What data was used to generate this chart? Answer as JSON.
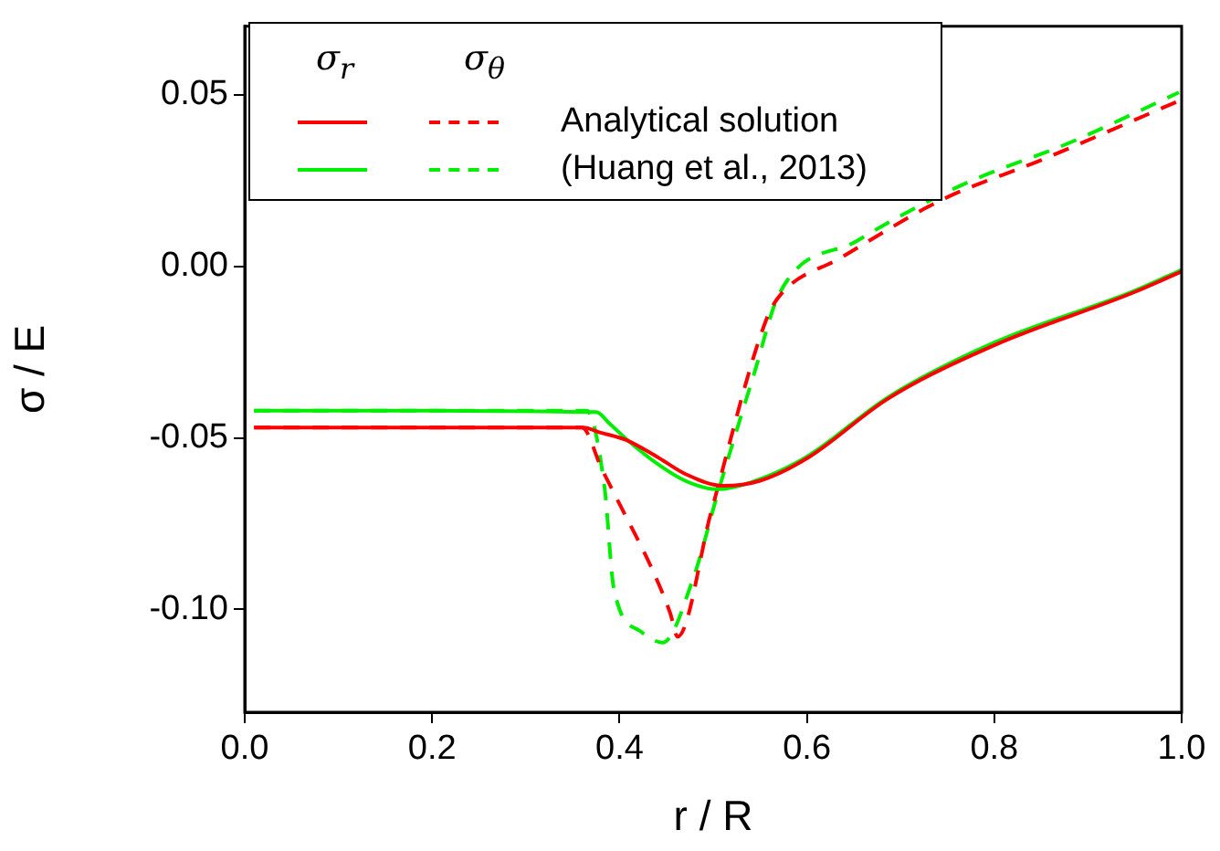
{
  "chart_data": {
    "type": "line",
    "xlabel": "r / R",
    "ylabel": "σ / E",
    "xlim": [
      0,
      1
    ],
    "ylim": [
      -0.13,
      0.07
    ],
    "xticks": [
      {
        "value": 0,
        "label": "0.0"
      },
      {
        "value": 0.2,
        "label": "0.2"
      },
      {
        "value": 0.4,
        "label": "0.4"
      },
      {
        "value": 0.6,
        "label": "0.6"
      },
      {
        "value": 0.8,
        "label": "0.8"
      },
      {
        "value": 1,
        "label": "1.0"
      }
    ],
    "yticks": [
      {
        "value": -0.1,
        "label": "-0.10"
      },
      {
        "value": -0.05,
        "label": "-0.05"
      },
      {
        "value": 0,
        "label": "0.00"
      },
      {
        "value": 0.05,
        "label": "0.05"
      }
    ],
    "grid": false,
    "legend": "top left",
    "legend_title": "σ$_{r}$          σ$_{θ}$",
    "marker": "none",
    "series": [
      {
        "name": "Analytical solution",
        "color": "#ff0000",
        "line_style": "solid",
        "x": [
          0.01,
          0.2,
          0.361,
          0.38,
          0.406,
          0.44,
          0.47,
          0.511,
          0.55,
          0.6,
          0.687,
          0.8,
          0.947,
          1.0
        ],
        "values": [
          -0.047,
          -0.047,
          -0.047,
          -0.0485,
          -0.0505,
          -0.0555,
          -0.0605,
          -0.064,
          -0.0625,
          -0.056,
          -0.0385,
          -0.023,
          -0.0078,
          -0.0015
        ]
      },
      {
        "name": "(Huang et al., 2013)",
        "color": "#00ee00",
        "line_style": "solid",
        "x": [
          0.01,
          0.2,
          0.375,
          0.39,
          0.41,
          0.44,
          0.47,
          0.504,
          0.54,
          0.6,
          0.687,
          0.8,
          0.947,
          1.0
        ],
        "values": [
          -0.0421,
          -0.0421,
          -0.0425,
          -0.046,
          -0.051,
          -0.0575,
          -0.0625,
          -0.065,
          -0.063,
          -0.0555,
          -0.0381,
          -0.0222,
          -0.0074,
          -0.001
        ]
      },
      {
        "color": "#ff0000",
        "line_style": "dashed",
        "x": [
          0.01,
          0.2,
          0.36,
          0.381,
          0.407,
          0.433,
          0.454,
          0.462,
          0.498,
          0.557,
          0.573,
          0.635,
          0.744,
          0.85,
          1.0
        ],
        "values": [
          -0.047,
          -0.047,
          -0.047,
          -0.059,
          -0.073,
          -0.0872,
          -0.101,
          -0.108,
          -0.0714,
          -0.0153,
          -0.0079,
          0.0023,
          0.0194,
          0.031,
          0.0486
        ]
      },
      {
        "color": "#00ee00",
        "line_style": "dashed",
        "x": [
          0.01,
          0.2,
          0.365,
          0.384,
          0.394,
          0.423,
          0.446,
          0.479,
          0.505,
          0.544,
          0.57,
          0.654,
          0.766,
          0.88,
          0.997
        ],
        "values": [
          -0.0421,
          -0.0421,
          -0.0421,
          -0.0644,
          -0.094,
          -0.1065,
          -0.1097,
          -0.0907,
          -0.066,
          -0.031,
          -0.0083,
          0.0075,
          0.0238,
          0.036,
          0.0507
        ]
      }
    ]
  }
}
